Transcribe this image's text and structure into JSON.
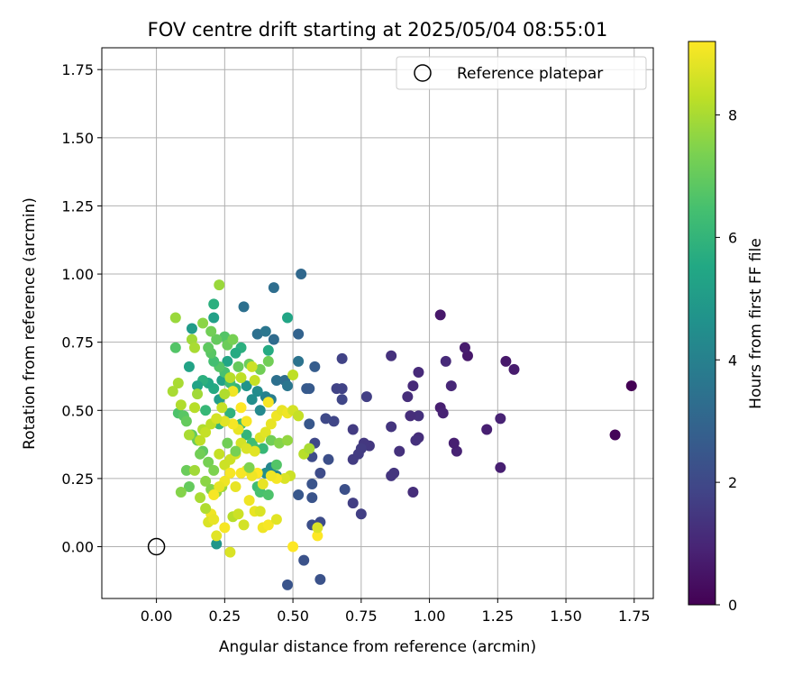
{
  "chart_data": {
    "type": "scatter",
    "title": "FOV centre drift starting at 2025/05/04 08:55:01",
    "xlabel": "Angular distance from reference (arcmin)",
    "ylabel": "Rotation from reference (arcmin)",
    "xlim": [
      -0.2,
      1.82
    ],
    "ylim": [
      -0.19,
      1.83
    ],
    "xticks": [
      "0.00",
      "0.25",
      "0.50",
      "0.75",
      "1.00",
      "1.25",
      "1.50",
      "1.75"
    ],
    "yticks": [
      "0.00",
      "0.25",
      "0.50",
      "0.75",
      "1.00",
      "1.25",
      "1.50",
      "1.75"
    ],
    "grid": true,
    "legend_position": "top-right",
    "colorbar": {
      "label": "Hours from first FF file",
      "range": [
        0,
        9.2
      ],
      "ticks": [
        "0",
        "2",
        "4",
        "6",
        "8"
      ],
      "colormap": "viridis"
    },
    "reference": {
      "name": "Reference platepar",
      "x": 0.0,
      "y": 0.0
    },
    "points": [
      [
        1.74,
        0.59,
        0.0
      ],
      [
        1.68,
        0.41,
        0.1
      ],
      [
        1.28,
        0.68,
        0.6
      ],
      [
        1.31,
        0.65,
        0.7
      ],
      [
        1.14,
        0.7,
        0.6
      ],
      [
        1.13,
        0.73,
        0.7
      ],
      [
        1.04,
        0.85,
        0.6
      ],
      [
        1.21,
        0.43,
        0.8
      ],
      [
        1.26,
        0.47,
        0.9
      ],
      [
        1.26,
        0.29,
        0.8
      ],
      [
        1.1,
        0.35,
        0.9
      ],
      [
        1.09,
        0.38,
        0.8
      ],
      [
        1.04,
        0.51,
        0.8
      ],
      [
        1.05,
        0.49,
        0.9
      ],
      [
        1.08,
        0.59,
        1.0
      ],
      [
        1.06,
        0.68,
        1.1
      ],
      [
        0.96,
        0.64,
        1.1
      ],
      [
        0.94,
        0.59,
        1.1
      ],
      [
        0.92,
        0.55,
        1.2
      ],
      [
        0.96,
        0.48,
        1.3
      ],
      [
        0.93,
        0.48,
        1.2
      ],
      [
        0.96,
        0.4,
        1.2
      ],
      [
        0.95,
        0.39,
        1.3
      ],
      [
        0.94,
        0.2,
        1.2
      ],
      [
        0.89,
        0.35,
        1.3
      ],
      [
        0.87,
        0.27,
        1.4
      ],
      [
        0.86,
        0.26,
        1.4
      ],
      [
        0.86,
        0.44,
        1.4
      ],
      [
        0.86,
        0.7,
        1.3
      ],
      [
        0.78,
        0.37,
        1.5
      ],
      [
        0.76,
        0.38,
        1.5
      ],
      [
        0.75,
        0.36,
        1.6
      ],
      [
        0.74,
        0.34,
        1.6
      ],
      [
        0.72,
        0.32,
        1.6
      ],
      [
        0.72,
        0.43,
        1.6
      ],
      [
        0.77,
        0.55,
        1.7
      ],
      [
        0.72,
        0.16,
        1.7
      ],
      [
        0.75,
        0.12,
        1.7
      ],
      [
        0.68,
        0.69,
        1.8
      ],
      [
        0.66,
        0.58,
        1.8
      ],
      [
        0.68,
        0.58,
        1.8
      ],
      [
        0.68,
        0.54,
        1.9
      ],
      [
        0.65,
        0.46,
        1.9
      ],
      [
        0.62,
        0.47,
        2.0
      ],
      [
        0.58,
        0.38,
        2.0
      ],
      [
        0.57,
        0.33,
        2.1
      ],
      [
        0.6,
        0.27,
        2.1
      ],
      [
        0.63,
        0.32,
        2.2
      ],
      [
        0.69,
        0.21,
        2.2
      ],
      [
        0.57,
        0.23,
        2.4
      ],
      [
        0.57,
        0.18,
        2.4
      ],
      [
        0.52,
        0.19,
        2.5
      ],
      [
        0.54,
        -0.05,
        2.3
      ],
      [
        0.48,
        -0.14,
        2.4
      ],
      [
        0.6,
        -0.12,
        2.3
      ],
      [
        0.57,
        0.08,
        2.2
      ],
      [
        0.6,
        0.09,
        2.1
      ],
      [
        0.56,
        0.45,
        2.5
      ],
      [
        0.55,
        0.58,
        2.6
      ],
      [
        0.56,
        0.58,
        2.6
      ],
      [
        0.58,
        0.66,
        2.7
      ],
      [
        0.52,
        0.78,
        2.9
      ],
      [
        0.53,
        1.0,
        3.1
      ],
      [
        0.43,
        0.95,
        3.3
      ],
      [
        0.43,
        0.76,
        3.2
      ],
      [
        0.37,
        0.78,
        3.4
      ],
      [
        0.4,
        0.79,
        3.6
      ],
      [
        0.32,
        0.88,
        3.4
      ],
      [
        0.52,
        0.68,
        3.5
      ],
      [
        0.47,
        0.61,
        3.3
      ],
      [
        0.44,
        0.61,
        3.4
      ],
      [
        0.48,
        0.59,
        3.6
      ],
      [
        0.4,
        0.55,
        4.0
      ],
      [
        0.42,
        0.54,
        3.9
      ],
      [
        0.38,
        0.5,
        4.3
      ],
      [
        0.35,
        0.54,
        4.5
      ],
      [
        0.33,
        0.59,
        4.7
      ],
      [
        0.37,
        0.57,
        4.4
      ],
      [
        0.44,
        0.26,
        4.1
      ],
      [
        0.42,
        0.29,
        4.2
      ],
      [
        0.4,
        0.27,
        4.5
      ],
      [
        0.22,
        0.01,
        4.8
      ],
      [
        0.13,
        0.8,
        5.0
      ],
      [
        0.21,
        0.84,
        5.2
      ],
      [
        0.48,
        0.84,
        5.4
      ],
      [
        0.41,
        0.72,
        5.6
      ],
      [
        0.31,
        0.73,
        5.8
      ],
      [
        0.29,
        0.71,
        5.6
      ],
      [
        0.26,
        0.68,
        5.4
      ],
      [
        0.24,
        0.61,
        5.2
      ],
      [
        0.23,
        0.54,
        5.1
      ],
      [
        0.21,
        0.58,
        5.6
      ],
      [
        0.19,
        0.6,
        5.5
      ],
      [
        0.17,
        0.61,
        5.8
      ],
      [
        0.15,
        0.59,
        5.3
      ],
      [
        0.12,
        0.66,
        5.3
      ],
      [
        0.18,
        0.5,
        6.1
      ],
      [
        0.23,
        0.45,
        6.0
      ],
      [
        0.27,
        0.49,
        5.9
      ],
      [
        0.31,
        0.45,
        6.2
      ],
      [
        0.33,
        0.41,
        6.0
      ],
      [
        0.35,
        0.38,
        6.3
      ],
      [
        0.36,
        0.36,
        6.4
      ],
      [
        0.39,
        0.36,
        6.1
      ],
      [
        0.37,
        0.22,
        6.3
      ],
      [
        0.38,
        0.2,
        6.5
      ],
      [
        0.41,
        0.19,
        6.6
      ],
      [
        0.44,
        0.3,
        6.7
      ],
      [
        0.29,
        0.58,
        6.0
      ],
      [
        0.27,
        0.6,
        6.3
      ],
      [
        0.25,
        0.64,
        6.5
      ],
      [
        0.23,
        0.66,
        6.7
      ],
      [
        0.21,
        0.68,
        6.4
      ],
      [
        0.2,
        0.71,
        6.8
      ],
      [
        0.19,
        0.73,
        6.9
      ],
      [
        0.21,
        0.89,
        5.8
      ],
      [
        0.25,
        0.77,
        6.7
      ],
      [
        0.22,
        0.76,
        7.0
      ],
      [
        0.2,
        0.79,
        7.2
      ],
      [
        0.26,
        0.74,
        7.1
      ],
      [
        0.28,
        0.76,
        7.3
      ],
      [
        0.3,
        0.66,
        7.0
      ],
      [
        0.34,
        0.67,
        7.1
      ],
      [
        0.38,
        0.65,
        7.2
      ],
      [
        0.41,
        0.68,
        7.2
      ],
      [
        0.07,
        0.73,
        6.7
      ],
      [
        0.08,
        0.49,
        6.6
      ],
      [
        0.1,
        0.48,
        6.8
      ],
      [
        0.11,
        0.46,
        7.0
      ],
      [
        0.13,
        0.41,
        7.0
      ],
      [
        0.15,
        0.39,
        7.1
      ],
      [
        0.17,
        0.35,
        6.9
      ],
      [
        0.16,
        0.34,
        7.2
      ],
      [
        0.19,
        0.31,
        7.3
      ],
      [
        0.21,
        0.28,
        7.4
      ],
      [
        0.11,
        0.28,
        7.1
      ],
      [
        0.12,
        0.22,
        7.0
      ],
      [
        0.18,
        0.24,
        7.6
      ],
      [
        0.2,
        0.21,
        7.5
      ],
      [
        0.22,
        0.2,
        7.7
      ],
      [
        0.24,
        0.22,
        7.8
      ],
      [
        0.23,
        0.96,
        7.8
      ],
      [
        0.07,
        0.84,
        7.8
      ],
      [
        0.17,
        0.82,
        7.6
      ],
      [
        0.13,
        0.76,
        7.9
      ],
      [
        0.14,
        0.73,
        8.0
      ],
      [
        0.06,
        0.57,
        8.0
      ],
      [
        0.08,
        0.6,
        8.0
      ],
      [
        0.09,
        0.52,
        8.1
      ],
      [
        0.12,
        0.41,
        8.0
      ],
      [
        0.16,
        0.39,
        8.3
      ],
      [
        0.17,
        0.43,
        8.1
      ],
      [
        0.18,
        0.42,
        8.4
      ],
      [
        0.2,
        0.45,
        8.3
      ],
      [
        0.23,
        0.34,
        8.4
      ],
      [
        0.25,
        0.3,
        8.5
      ],
      [
        0.27,
        0.32,
        8.5
      ],
      [
        0.29,
        0.34,
        8.6
      ],
      [
        0.31,
        0.38,
        8.6
      ],
      [
        0.33,
        0.36,
        8.7
      ],
      [
        0.36,
        0.35,
        8.8
      ],
      [
        0.38,
        0.4,
        8.7
      ],
      [
        0.4,
        0.42,
        8.8
      ],
      [
        0.42,
        0.45,
        8.9
      ],
      [
        0.44,
        0.48,
        9.0
      ],
      [
        0.46,
        0.5,
        8.9
      ],
      [
        0.48,
        0.49,
        9.0
      ],
      [
        0.5,
        0.5,
        8.6
      ],
      [
        0.5,
        0.63,
        8.3
      ],
      [
        0.52,
        0.48,
        8.4
      ],
      [
        0.54,
        0.34,
        8.2
      ],
      [
        0.56,
        0.36,
        8.0
      ],
      [
        0.49,
        0.26,
        8.5
      ],
      [
        0.47,
        0.25,
        8.7
      ],
      [
        0.44,
        0.25,
        9.1
      ],
      [
        0.42,
        0.26,
        9.0
      ],
      [
        0.39,
        0.23,
        8.9
      ],
      [
        0.37,
        0.27,
        9.2
      ],
      [
        0.35,
        0.26,
        9.0
      ],
      [
        0.33,
        0.28,
        8.9
      ],
      [
        0.31,
        0.27,
        9.1
      ],
      [
        0.29,
        0.22,
        8.9
      ],
      [
        0.27,
        0.27,
        9.1
      ],
      [
        0.25,
        0.24,
        9.0
      ],
      [
        0.23,
        0.22,
        8.9
      ],
      [
        0.21,
        0.19,
        9.1
      ],
      [
        0.2,
        0.12,
        9.0
      ],
      [
        0.19,
        0.09,
        8.7
      ],
      [
        0.21,
        0.1,
        8.9
      ],
      [
        0.22,
        0.04,
        8.8
      ],
      [
        0.25,
        0.07,
        9.1
      ],
      [
        0.27,
        -0.02,
        8.7
      ],
      [
        0.32,
        0.08,
        8.6
      ],
      [
        0.34,
        0.17,
        9.0
      ],
      [
        0.36,
        0.13,
        8.9
      ],
      [
        0.38,
        0.13,
        8.7
      ],
      [
        0.39,
        0.07,
        9.0
      ],
      [
        0.41,
        0.08,
        9.1
      ],
      [
        0.44,
        0.1,
        8.8
      ],
      [
        0.5,
        0.0,
        9.2
      ],
      [
        0.59,
        0.04,
        9.2
      ],
      [
        0.59,
        0.07,
        8.7
      ],
      [
        0.28,
        0.57,
        9.0
      ],
      [
        0.31,
        0.51,
        9.2
      ],
      [
        0.33,
        0.46,
        9.1
      ],
      [
        0.3,
        0.43,
        8.9
      ],
      [
        0.28,
        0.45,
        9.1
      ],
      [
        0.25,
        0.46,
        8.8
      ],
      [
        0.41,
        0.53,
        9.1
      ],
      [
        0.36,
        0.61,
        8.4
      ],
      [
        0.35,
        0.66,
        8.5
      ],
      [
        0.31,
        0.62,
        8.3
      ],
      [
        0.27,
        0.62,
        8.2
      ],
      [
        0.25,
        0.56,
        8.1
      ],
      [
        0.24,
        0.51,
        8.4
      ],
      [
        0.22,
        0.47,
        8.6
      ],
      [
        0.14,
        0.51,
        8.2
      ],
      [
        0.15,
        0.56,
        7.9
      ],
      [
        0.14,
        0.28,
        7.9
      ],
      [
        0.16,
        0.18,
        8.0
      ],
      [
        0.18,
        0.14,
        8.1
      ],
      [
        0.28,
        0.11,
        8.2
      ],
      [
        0.3,
        0.12,
        8.5
      ],
      [
        0.09,
        0.2,
        7.5
      ],
      [
        0.42,
        0.39,
        7.2
      ],
      [
        0.45,
        0.38,
        7.5
      ],
      [
        0.48,
        0.39,
        7.7
      ],
      [
        0.34,
        0.29,
        7.4
      ],
      [
        0.29,
        0.35,
        7.3
      ],
      [
        0.26,
        0.38,
        7.2
      ]
    ]
  }
}
